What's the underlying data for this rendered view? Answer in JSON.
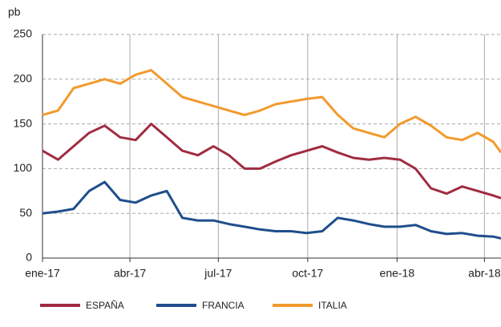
{
  "chart_data": {
    "type": "line",
    "ylabel": "pb",
    "x": [
      0,
      16,
      32,
      48,
      64,
      80,
      96,
      112,
      128,
      144,
      160,
      176,
      192,
      208,
      224,
      240,
      256,
      272,
      288,
      304,
      320,
      336,
      352,
      368,
      384,
      400,
      416,
      432,
      448,
      464,
      472
    ],
    "xlim": [
      0,
      472
    ],
    "xticks": [
      {
        "value": 0,
        "label": "ene-17"
      },
      {
        "value": 90,
        "label": "abr-17"
      },
      {
        "value": 181,
        "label": "jul-17"
      },
      {
        "value": 273,
        "label": "oct-17"
      },
      {
        "value": 365,
        "label": "ene-18"
      },
      {
        "value": 455,
        "label": "abr-18"
      }
    ],
    "ylim": [
      0,
      250
    ],
    "yticks": [
      0,
      50,
      100,
      150,
      200,
      250
    ],
    "grid": true,
    "series": [
      {
        "name": "ESPAÑA",
        "color": "#a12c42",
        "values": [
          120,
          110,
          125,
          140,
          148,
          135,
          132,
          150,
          135,
          120,
          115,
          125,
          115,
          100,
          100,
          108,
          115,
          120,
          125,
          118,
          112,
          110,
          112,
          110,
          100,
          78,
          72,
          80,
          75,
          70,
          67
        ]
      },
      {
        "name": "FRANCIA",
        "color": "#1f4e8c",
        "values": [
          50,
          52,
          55,
          75,
          85,
          65,
          62,
          70,
          75,
          45,
          42,
          42,
          38,
          35,
          32,
          30,
          30,
          28,
          30,
          45,
          42,
          38,
          35,
          35,
          37,
          30,
          27,
          28,
          25,
          24,
          22
        ]
      },
      {
        "name": "ITALIA",
        "color": "#f29a2e",
        "values": [
          160,
          165,
          190,
          195,
          200,
          195,
          205,
          210,
          195,
          180,
          175,
          170,
          165,
          160,
          165,
          172,
          175,
          178,
          180,
          160,
          145,
          140,
          135,
          150,
          158,
          148,
          135,
          132,
          140,
          130,
          118
        ]
      }
    ]
  }
}
